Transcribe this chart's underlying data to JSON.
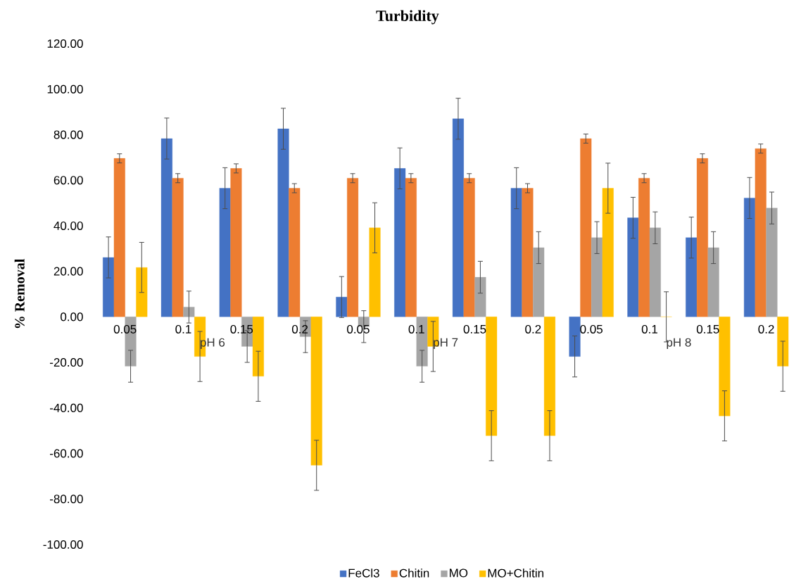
{
  "chart_data": {
    "type": "bar",
    "title": "Turbidity",
    "ylabel": "% Removal",
    "categories": [
      "0.05",
      "0.1",
      "0.15",
      "0.2",
      "0.05",
      "0.1",
      "0.15",
      "0.2",
      "0.05",
      "0.1",
      "0.15",
      "0.2"
    ],
    "series": [
      {
        "name": "FeCl3",
        "color": "#4472c4",
        "values": [
          26.1,
          78.3,
          56.5,
          82.6,
          8.7,
          65.2,
          87.0,
          56.5,
          -17.4,
          43.5,
          34.8,
          52.2
        ],
        "errors": [
          9,
          9,
          9,
          9,
          9,
          9,
          9,
          9,
          9,
          9,
          9,
          9
        ]
      },
      {
        "name": "Chitin",
        "color": "#ed7d31",
        "values": [
          69.6,
          60.9,
          65.2,
          56.5,
          60.9,
          60.9,
          60.9,
          56.5,
          78.3,
          60.9,
          69.6,
          73.9
        ],
        "errors": [
          2,
          2,
          2,
          2,
          2,
          2,
          2,
          2,
          2,
          2,
          2,
          2
        ]
      },
      {
        "name": "MO",
        "color": "#a5a5a5",
        "values": [
          -21.7,
          4.3,
          -13.0,
          -8.7,
          -4.3,
          -21.7,
          17.4,
          30.4,
          34.8,
          39.1,
          30.4,
          47.8
        ],
        "errors": [
          7,
          7,
          7,
          7,
          7,
          7,
          7,
          7,
          7,
          7,
          7,
          7
        ]
      },
      {
        "name": "MO+Chitin",
        "color": "#ffc000",
        "values": [
          21.7,
          -17.4,
          -26.1,
          -65.2,
          39.1,
          -13.0,
          -52.2,
          -52.2,
          56.5,
          0,
          -43.5,
          -21.7
        ],
        "errors": [
          11,
          11,
          11,
          11,
          11,
          11,
          11,
          11,
          11,
          11,
          11,
          11
        ]
      }
    ],
    "annotations": [
      "pH 6",
      "pH 7",
      "pH 8"
    ],
    "ylim": [
      -100,
      120
    ],
    "yticks": [
      {
        "value": -100,
        "label": "-100.00"
      },
      {
        "value": -80,
        "label": "-80.00"
      },
      {
        "value": -60,
        "label": "-60.00"
      },
      {
        "value": -40,
        "label": "-40.00"
      },
      {
        "value": -20,
        "label": "-20.00"
      },
      {
        "value": 0,
        "label": "0.00"
      },
      {
        "value": 20,
        "label": "20.00"
      },
      {
        "value": 40,
        "label": "40.00"
      },
      {
        "value": 60,
        "label": "60.00"
      },
      {
        "value": 80,
        "label": "80.00"
      },
      {
        "value": 100,
        "label": "100.00"
      },
      {
        "value": 120,
        "label": "120.00"
      }
    ],
    "legend": "bottom"
  }
}
